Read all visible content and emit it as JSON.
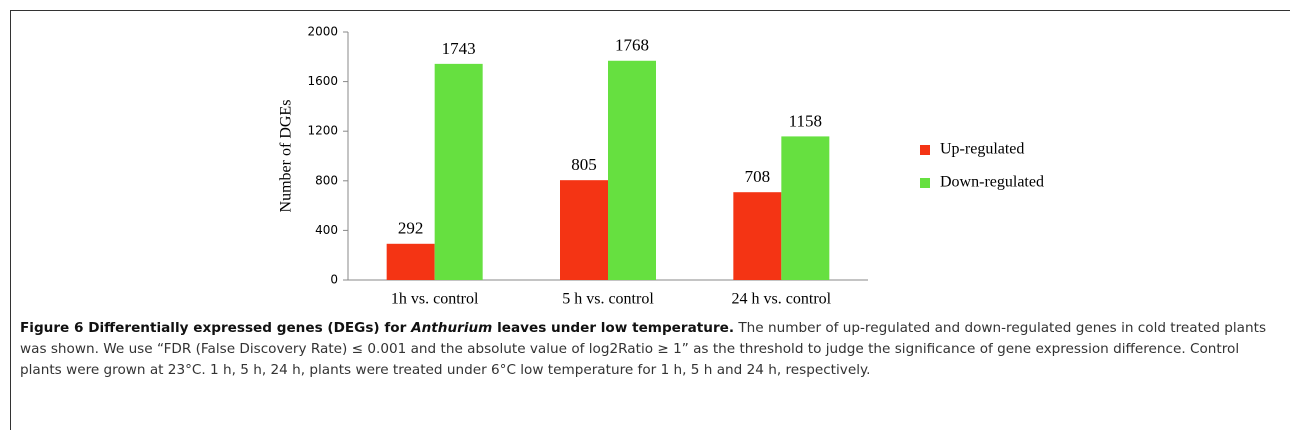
{
  "chart_data": {
    "type": "bar",
    "categories": [
      "1h vs. control",
      "5 h vs. control",
      "24 h vs. control"
    ],
    "series": [
      {
        "name": "Up-regulated",
        "color": "#f43414",
        "values": [
          292,
          805,
          708
        ]
      },
      {
        "name": "Down-regulated",
        "color": "#66e040",
        "values": [
          1743,
          1768,
          1158
        ]
      }
    ],
    "ylabel": "Number of DGEs",
    "ylim": [
      0,
      2000
    ],
    "yticks": [
      0,
      400,
      800,
      1200,
      1600,
      2000
    ],
    "legend": "right",
    "grid": false
  },
  "caption": {
    "label": "Figure 6",
    "title_start": "Differentially expressed genes (DEGs) for",
    "title_italic": "Anthurium",
    "title_end": "leaves under low temperature.",
    "body": "The number of up-regulated and down-regulated genes in cold treated plants was shown. We use “FDR (False Discovery Rate) ≤ 0.001 and the absolute value of log2Ratio ≥ 1” as the threshold to judge the significance of gene expression difference. Control plants were grown at 23°C. 1 h, 5 h, 24 h, plants were treated under 6°C low temperature for 1 h, 5 h and 24 h, respectively."
  }
}
